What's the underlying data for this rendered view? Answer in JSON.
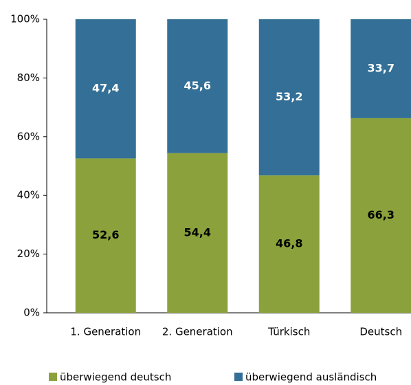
{
  "chart_data": {
    "type": "stacked_bar",
    "categories": [
      "1. Generation",
      "2. Generation",
      "Türkisch",
      "Deutsch"
    ],
    "series": [
      {
        "name": "überwiegend deutsch",
        "color": "#8ba23c",
        "values": [
          52.6,
          54.4,
          46.8,
          66.3
        ],
        "value_labels": [
          "52,6",
          "54,4",
          "46,8",
          "66,3"
        ]
      },
      {
        "name": "überwiegend ausländisch",
        "color": "#336f96",
        "values": [
          47.4,
          45.6,
          53.2,
          33.7
        ],
        "value_labels": [
          "47,4",
          "45,6",
          "53,2",
          "33,7"
        ]
      }
    ],
    "ylim": [
      0,
      100
    ],
    "yticks": [
      {
        "value": 0,
        "label": "0%"
      },
      {
        "value": 20,
        "label": "20%"
      },
      {
        "value": 40,
        "label": "40%"
      },
      {
        "value": 60,
        "label": "60%"
      },
      {
        "value": 80,
        "label": "80%"
      },
      {
        "value": 100,
        "label": "100%"
      }
    ],
    "legend": "bottom"
  }
}
